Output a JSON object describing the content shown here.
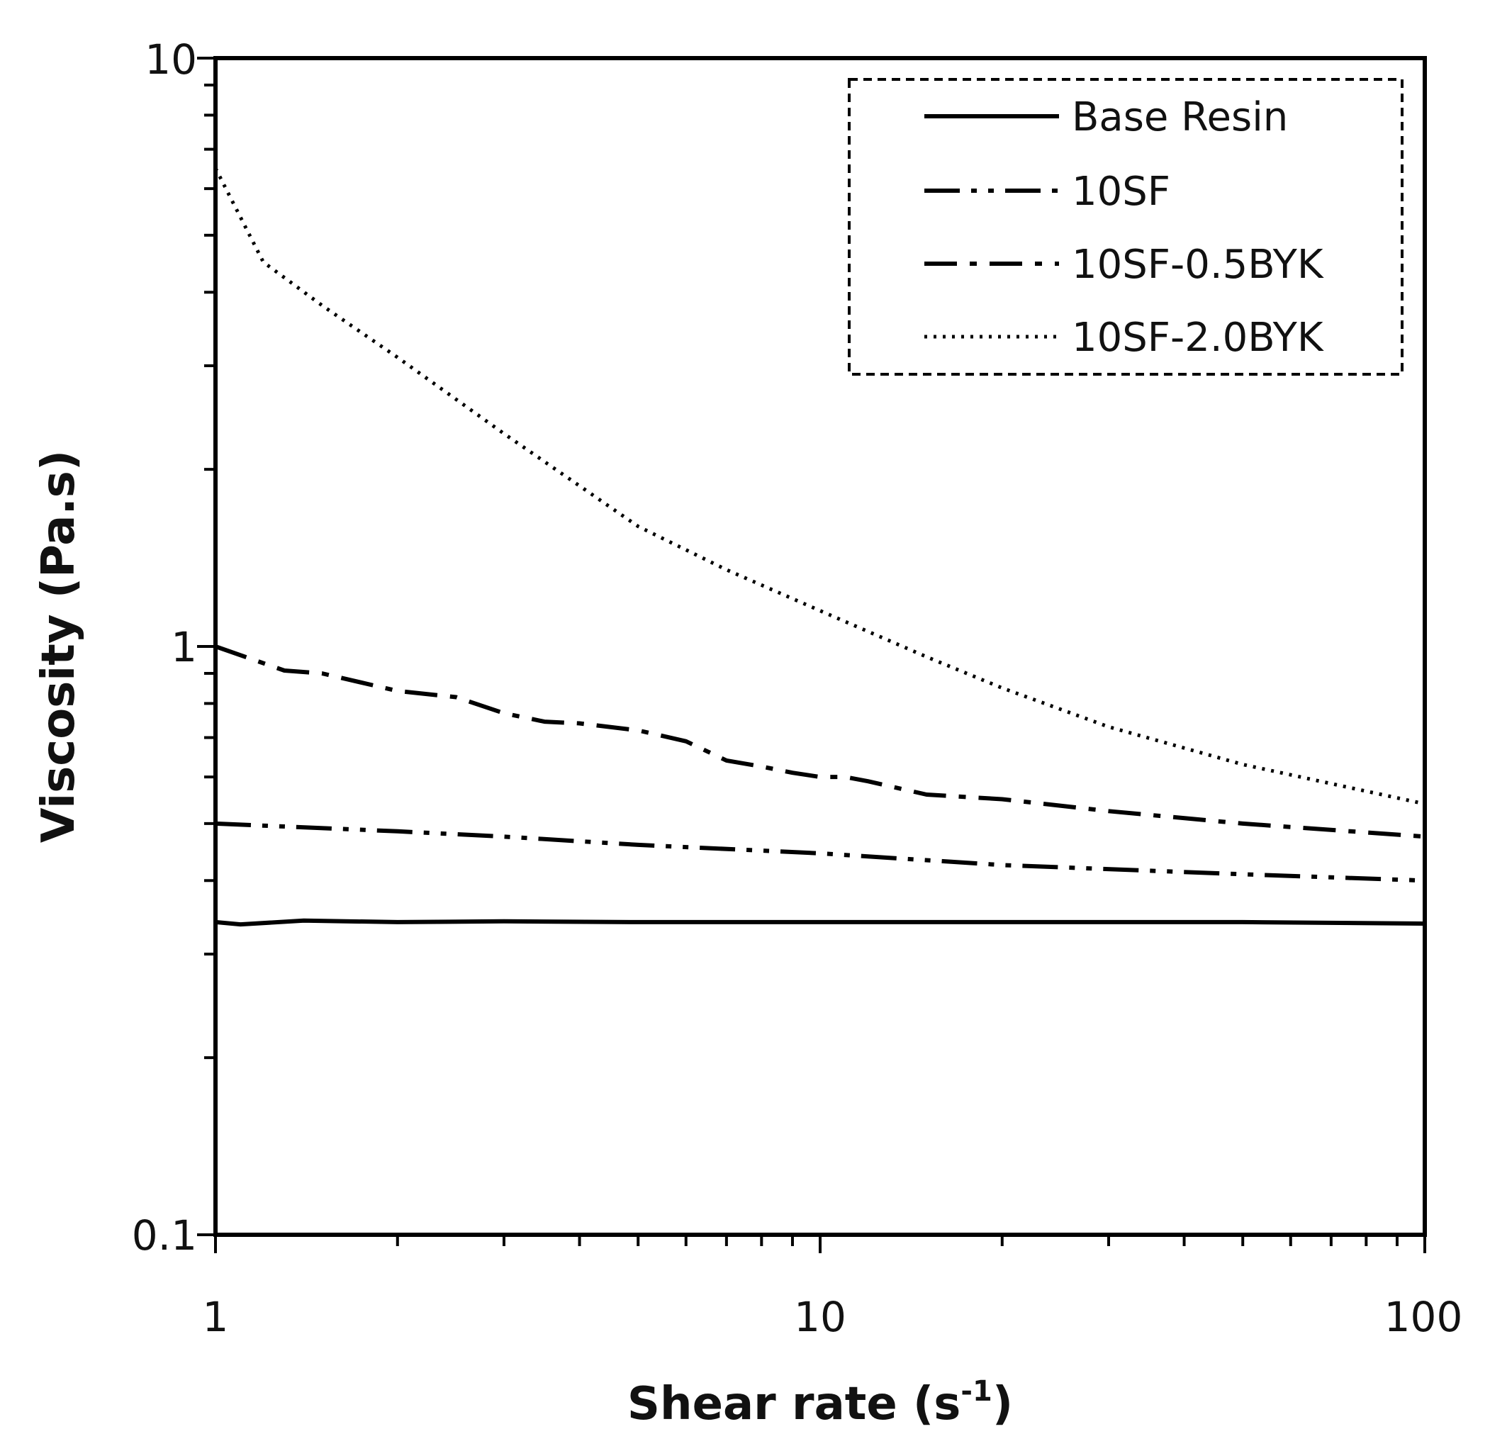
{
  "chart_data": {
    "type": "line",
    "title": "",
    "xlabel": "Shear rate (s",
    "xlabel_sup": "-1",
    "xlabel_close": ")",
    "ylabel": "Viscosity (Pa.s)",
    "xscale": "log",
    "yscale": "log",
    "xlim": [
      1,
      100
    ],
    "ylim": [
      0.1,
      10
    ],
    "x_ticks": [
      "1",
      "10",
      "100"
    ],
    "y_ticks": [
      "0.1",
      "1",
      "10"
    ],
    "legend_position": "top-right",
    "grid": false,
    "series": [
      {
        "name": "Base Resin",
        "style": "solid",
        "x": [
          1,
          1.1,
          1.4,
          2,
          3,
          5,
          10,
          20,
          50,
          100
        ],
        "y": [
          0.34,
          0.337,
          0.342,
          0.34,
          0.341,
          0.34,
          0.34,
          0.34,
          0.34,
          0.338
        ]
      },
      {
        "name": "10SF",
        "style": "long-dash-dot-dot",
        "x": [
          1,
          2,
          3,
          5,
          10,
          20,
          50,
          100
        ],
        "y": [
          0.5,
          0.485,
          0.475,
          0.46,
          0.445,
          0.425,
          0.41,
          0.4
        ]
      },
      {
        "name": "10SF-0.5BYK",
        "style": "long-dash-dot",
        "x": [
          1,
          1.3,
          1.5,
          2,
          2.5,
          3,
          3.5,
          4,
          5,
          6,
          7,
          8,
          9,
          10,
          11,
          12,
          15,
          20,
          30,
          50,
          100
        ],
        "y": [
          1.0,
          0.91,
          0.9,
          0.84,
          0.82,
          0.77,
          0.745,
          0.74,
          0.72,
          0.69,
          0.64,
          0.625,
          0.61,
          0.6,
          0.6,
          0.59,
          0.56,
          0.55,
          0.525,
          0.5,
          0.475
        ]
      },
      {
        "name": "10SF-2.0BYK",
        "style": "dotted",
        "x": [
          1,
          1.2,
          1.5,
          2,
          3,
          5,
          7,
          10,
          15,
          20,
          30,
          50,
          100
        ],
        "y": [
          6.5,
          4.5,
          3.8,
          3.1,
          2.3,
          1.6,
          1.35,
          1.15,
          0.96,
          0.85,
          0.73,
          0.63,
          0.54
        ]
      }
    ]
  }
}
